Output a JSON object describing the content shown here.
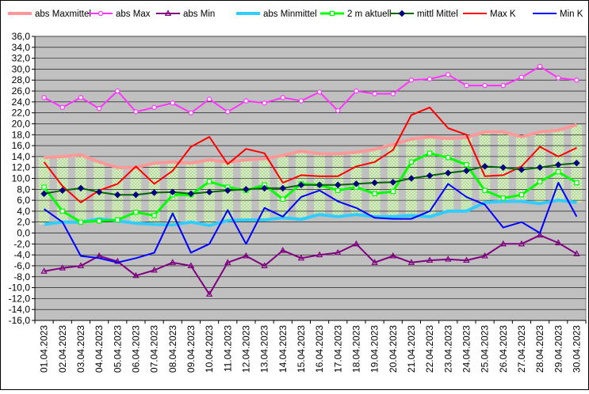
{
  "chart_data": {
    "type": "line",
    "title": "",
    "xlabel": "",
    "ylabel": "",
    "ylim": [
      -16,
      36
    ],
    "y_ticks": [
      "36,0",
      "34,0",
      "32,0",
      "30,0",
      "28,0",
      "26,0",
      "24,0",
      "22,0",
      "20,0",
      "18,0",
      "16,0",
      "14,0",
      "12,0",
      "10,0",
      "8,0",
      "6,0",
      "4,0",
      "2,0",
      "0,0",
      "-2,0",
      "-4,0",
      "-6,0",
      "-8,0",
      "-10,0",
      "-12,0",
      "-14,0",
      "-16,0"
    ],
    "y_tick_values": [
      36,
      34,
      32,
      30,
      28,
      26,
      24,
      22,
      20,
      18,
      16,
      14,
      12,
      10,
      8,
      6,
      4,
      2,
      0,
      -2,
      -4,
      -6,
      -8,
      -10,
      -12,
      -14,
      -16
    ],
    "grid": true,
    "legend_position": "top",
    "background_color": "#c0c0c0",
    "categories": [
      "01.04.2023",
      "02.04.2023",
      "03.04.2023",
      "04.04.2023",
      "05.04.2023",
      "06.04.2023",
      "07.04.2023",
      "08.04.2023",
      "09.04.2023",
      "10.04.2023",
      "11.04.2023",
      "12.04.2023",
      "13.04.2023",
      "14.04.2023",
      "15.04.2023",
      "16.04.2023",
      "17.04.2023",
      "18.04.2023",
      "19.04.2023",
      "20.04.2023",
      "21.04.2023",
      "22.04.2023",
      "23.04.2023",
      "24.04.2023",
      "25.04.2023",
      "26.04.2023",
      "27.04.2023",
      "28.04.2023",
      "29.04.2023",
      "30.04.2023"
    ],
    "series": [
      {
        "name": "abs Maxmittel",
        "color": "#ff9999",
        "marker": "none",
        "width": 4,
        "values": [
          13.8,
          14.0,
          14.3,
          13.0,
          12.0,
          12.0,
          12.8,
          13.0,
          12.8,
          13.4,
          13.0,
          13.4,
          13.6,
          14.2,
          15.0,
          14.5,
          14.5,
          14.8,
          15.3,
          16.2,
          17.2,
          17.6,
          17.3,
          17.5,
          18.5,
          18.5,
          17.6,
          18.5,
          18.8,
          19.8
        ]
      },
      {
        "name": "abs Max",
        "color": "#ff33ff",
        "marker": "circle-open",
        "width": 2,
        "values": [
          24.8,
          23.0,
          24.8,
          22.8,
          26.0,
          22.2,
          23.0,
          23.8,
          22.0,
          24.5,
          22.2,
          24.2,
          23.8,
          24.8,
          24.2,
          25.8,
          22.4,
          26.0,
          25.5,
          25.5,
          28.0,
          28.2,
          29.0,
          27.0,
          27.0,
          27.0,
          28.5,
          30.5,
          28.4,
          28.0
        ]
      },
      {
        "name": "abs Min",
        "color": "#800080",
        "marker": "triangle-open",
        "width": 2,
        "values": [
          -7.0,
          -6.4,
          -6.0,
          -4.2,
          -5.2,
          -7.8,
          -6.8,
          -5.4,
          -6.0,
          -11.2,
          -5.4,
          -4.2,
          -6.0,
          -3.2,
          -4.6,
          -4.0,
          -3.6,
          -2.0,
          -5.4,
          -4.2,
          -5.4,
          -5.0,
          -4.8,
          -5.0,
          -4.2,
          -2.0,
          -2.0,
          -0.4,
          -1.8,
          -3.8
        ]
      },
      {
        "name": "abs Minmittel",
        "color": "#33ccff",
        "marker": "none",
        "width": 4,
        "values": [
          1.6,
          2.0,
          2.0,
          2.6,
          2.2,
          1.8,
          1.6,
          1.5,
          2.0,
          1.4,
          2.3,
          2.4,
          2.4,
          2.8,
          2.5,
          3.4,
          3.0,
          3.4,
          3.0,
          3.0,
          3.2,
          3.0,
          4.0,
          4.0,
          5.6,
          5.8,
          5.8,
          5.4,
          6.0,
          5.6
        ]
      },
      {
        "name": "2 m aktuell",
        "color": "#00ff00",
        "marker": "square-open",
        "width": 3,
        "values": [
          8.4,
          4.0,
          2.0,
          2.2,
          2.4,
          3.8,
          3.2,
          7.0,
          7.0,
          9.4,
          8.4,
          7.8,
          8.8,
          6.2,
          9.0,
          8.8,
          7.8,
          8.4,
          7.2,
          7.6,
          13.0,
          14.6,
          13.8,
          12.5,
          7.8,
          6.4,
          7.0,
          9.4,
          11.2,
          9.2
        ]
      },
      {
        "name": "mittl Mittel",
        "color": "#006600",
        "marker": "diamond",
        "marker_color": "#000080",
        "width": 2,
        "values": [
          7.2,
          7.8,
          8.2,
          7.5,
          7.0,
          7.0,
          7.4,
          7.5,
          7.2,
          7.5,
          7.8,
          8.0,
          8.2,
          8.2,
          8.8,
          8.8,
          8.8,
          9.0,
          9.2,
          9.3,
          10.0,
          10.5,
          11.0,
          11.4,
          12.2,
          12.0,
          11.6,
          12.0,
          12.5,
          12.8
        ]
      },
      {
        "name": "Max K",
        "color": "#ff0000",
        "marker": "none",
        "width": 2,
        "values": [
          13.0,
          8.6,
          5.6,
          7.8,
          9.0,
          12.2,
          9.0,
          11.4,
          15.8,
          17.6,
          12.6,
          15.4,
          14.6,
          9.2,
          10.6,
          10.4,
          10.4,
          12.2,
          13.0,
          15.2,
          21.6,
          23.0,
          19.2,
          18.0,
          10.4,
          10.6,
          12.2,
          15.8,
          14.0,
          15.6
        ]
      },
      {
        "name": "Min K",
        "color": "#0000ff",
        "marker": "none",
        "width": 2,
        "values": [
          4.4,
          2.0,
          -4.2,
          -4.6,
          -5.4,
          -4.6,
          -3.6,
          3.6,
          -3.6,
          -2.0,
          4.2,
          -2.0,
          4.6,
          3.0,
          6.6,
          7.8,
          5.8,
          4.6,
          2.8,
          2.6,
          2.6,
          4.0,
          9.0,
          6.6,
          5.2,
          1.0,
          2.0,
          0.0,
          9.2,
          3.0
        ]
      }
    ]
  }
}
